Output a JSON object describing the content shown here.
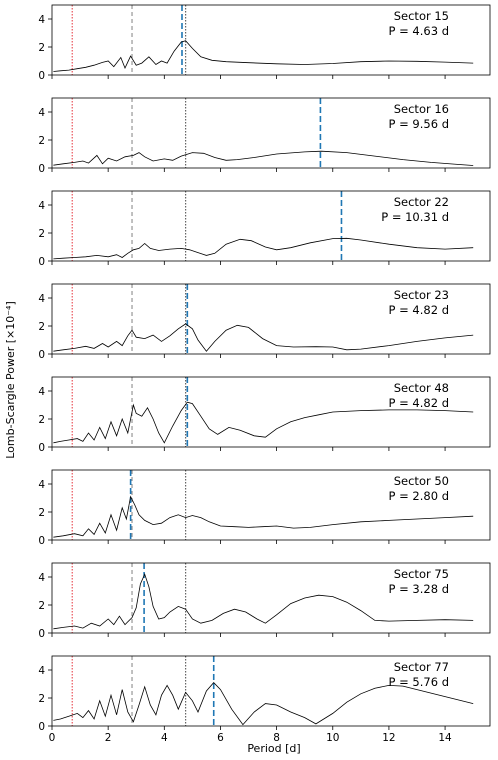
{
  "chart_data": {
    "type": "line",
    "ylabel": "Lomb-Scargle Power [×10⁻⁴]",
    "xlabel": "Period [d]",
    "xlim": [
      0,
      15.6
    ],
    "ylim": [
      0,
      5
    ],
    "x_ticks": [
      "0",
      "2",
      "4",
      "6",
      "8",
      "10",
      "12",
      "14"
    ],
    "x_tick_values": [
      0,
      2,
      4,
      6,
      8,
      10,
      12,
      14
    ],
    "y_ticks": [
      "0",
      "2",
      "4"
    ],
    "y_tick_values": [
      0,
      2,
      4
    ],
    "reference_lines": [
      {
        "kind": "red-dotted",
        "x": 0.72,
        "color": "#e8434b"
      },
      {
        "kind": "gray-dashed",
        "x": 2.85,
        "color": "#8c8c8c"
      },
      {
        "kind": "gray-dotted",
        "x": 4.76,
        "color": "#555555"
      }
    ],
    "best_period_color": "#1f77b4",
    "line_color": "#000000",
    "panels": [
      {
        "sector": "Sector 15",
        "period": "P = 4.63 d",
        "period_value": 4.63,
        "points": [
          [
            0.05,
            0.25
          ],
          [
            0.3,
            0.3
          ],
          [
            0.6,
            0.35
          ],
          [
            0.9,
            0.45
          ],
          [
            1.2,
            0.55
          ],
          [
            1.5,
            0.7
          ],
          [
            1.8,
            0.9
          ],
          [
            2.0,
            1.0
          ],
          [
            2.2,
            0.6
          ],
          [
            2.45,
            1.25
          ],
          [
            2.6,
            0.5
          ],
          [
            2.8,
            1.35
          ],
          [
            3.0,
            0.7
          ],
          [
            3.2,
            0.85
          ],
          [
            3.45,
            1.3
          ],
          [
            3.7,
            0.75
          ],
          [
            3.9,
            1.0
          ],
          [
            4.1,
            0.85
          ],
          [
            4.35,
            1.7
          ],
          [
            4.6,
            2.35
          ],
          [
            4.76,
            2.45
          ],
          [
            5.0,
            1.9
          ],
          [
            5.3,
            1.3
          ],
          [
            5.7,
            1.05
          ],
          [
            6.2,
            0.95
          ],
          [
            7.0,
            0.88
          ],
          [
            8.0,
            0.8
          ],
          [
            9.0,
            0.75
          ],
          [
            10.0,
            0.82
          ],
          [
            11.0,
            0.95
          ],
          [
            12.0,
            1.0
          ],
          [
            13.0,
            0.98
          ],
          [
            14.0,
            0.92
          ],
          [
            15.0,
            0.85
          ]
        ]
      },
      {
        "sector": "Sector 16",
        "period": "P = 9.56 d",
        "period_value": 9.56,
        "points": [
          [
            0.05,
            0.2
          ],
          [
            0.4,
            0.3
          ],
          [
            0.8,
            0.4
          ],
          [
            1.1,
            0.5
          ],
          [
            1.3,
            0.35
          ],
          [
            1.6,
            0.9
          ],
          [
            1.8,
            0.3
          ],
          [
            2.0,
            0.7
          ],
          [
            2.3,
            0.5
          ],
          [
            2.6,
            0.8
          ],
          [
            2.9,
            0.9
          ],
          [
            3.1,
            1.1
          ],
          [
            3.3,
            0.8
          ],
          [
            3.6,
            0.5
          ],
          [
            4.0,
            0.65
          ],
          [
            4.3,
            0.55
          ],
          [
            4.6,
            0.85
          ],
          [
            5.0,
            1.1
          ],
          [
            5.4,
            1.05
          ],
          [
            5.8,
            0.75
          ],
          [
            6.2,
            0.55
          ],
          [
            6.6,
            0.6
          ],
          [
            7.2,
            0.75
          ],
          [
            8.0,
            1.0
          ],
          [
            9.0,
            1.15
          ],
          [
            9.6,
            1.2
          ],
          [
            10.5,
            1.1
          ],
          [
            11.5,
            0.85
          ],
          [
            12.5,
            0.6
          ],
          [
            13.5,
            0.4
          ],
          [
            14.5,
            0.25
          ],
          [
            15.0,
            0.18
          ]
        ]
      },
      {
        "sector": "Sector 22",
        "period": "P = 10.31 d",
        "period_value": 10.31,
        "points": [
          [
            0.05,
            0.15
          ],
          [
            0.4,
            0.2
          ],
          [
            0.8,
            0.25
          ],
          [
            1.2,
            0.3
          ],
          [
            1.6,
            0.4
          ],
          [
            2.0,
            0.3
          ],
          [
            2.3,
            0.45
          ],
          [
            2.5,
            0.25
          ],
          [
            2.7,
            0.55
          ],
          [
            2.9,
            0.8
          ],
          [
            3.1,
            0.9
          ],
          [
            3.3,
            1.25
          ],
          [
            3.5,
            0.9
          ],
          [
            3.8,
            0.75
          ],
          [
            4.2,
            0.85
          ],
          [
            4.6,
            0.9
          ],
          [
            4.9,
            0.8
          ],
          [
            5.2,
            0.6
          ],
          [
            5.5,
            0.4
          ],
          [
            5.8,
            0.55
          ],
          [
            6.2,
            1.2
          ],
          [
            6.7,
            1.55
          ],
          [
            7.1,
            1.45
          ],
          [
            7.6,
            1.0
          ],
          [
            8.0,
            0.8
          ],
          [
            8.5,
            0.95
          ],
          [
            9.2,
            1.3
          ],
          [
            10.0,
            1.6
          ],
          [
            10.5,
            1.62
          ],
          [
            11.0,
            1.5
          ],
          [
            12.0,
            1.2
          ],
          [
            13.0,
            0.95
          ],
          [
            14.0,
            0.85
          ],
          [
            15.0,
            0.95
          ]
        ]
      },
      {
        "sector": "Sector 23",
        "period": "P = 4.82 d",
        "period_value": 4.82,
        "points": [
          [
            0.05,
            0.2
          ],
          [
            0.4,
            0.3
          ],
          [
            0.8,
            0.4
          ],
          [
            1.2,
            0.55
          ],
          [
            1.5,
            0.4
          ],
          [
            1.8,
            0.75
          ],
          [
            2.0,
            0.5
          ],
          [
            2.3,
            0.9
          ],
          [
            2.5,
            0.6
          ],
          [
            2.7,
            1.3
          ],
          [
            2.85,
            1.7
          ],
          [
            3.0,
            1.2
          ],
          [
            3.3,
            1.1
          ],
          [
            3.6,
            1.35
          ],
          [
            3.9,
            0.9
          ],
          [
            4.2,
            1.3
          ],
          [
            4.5,
            1.8
          ],
          [
            4.76,
            2.15
          ],
          [
            5.0,
            1.8
          ],
          [
            5.2,
            1.0
          ],
          [
            5.5,
            0.2
          ],
          [
            5.8,
            0.9
          ],
          [
            6.2,
            1.7
          ],
          [
            6.6,
            2.05
          ],
          [
            7.0,
            1.9
          ],
          [
            7.5,
            1.1
          ],
          [
            8.0,
            0.6
          ],
          [
            8.6,
            0.5
          ],
          [
            9.4,
            0.52
          ],
          [
            10.0,
            0.5
          ],
          [
            10.5,
            0.3
          ],
          [
            11.0,
            0.35
          ],
          [
            12.0,
            0.6
          ],
          [
            13.0,
            0.9
          ],
          [
            14.0,
            1.15
          ],
          [
            15.0,
            1.35
          ]
        ]
      },
      {
        "sector": "Sector 48",
        "period": "P = 4.82 d",
        "period_value": 4.82,
        "points": [
          [
            0.05,
            0.3
          ],
          [
            0.3,
            0.4
          ],
          [
            0.6,
            0.5
          ],
          [
            0.9,
            0.6
          ],
          [
            1.1,
            0.4
          ],
          [
            1.3,
            1.0
          ],
          [
            1.5,
            0.5
          ],
          [
            1.7,
            1.4
          ],
          [
            1.9,
            0.6
          ],
          [
            2.1,
            1.8
          ],
          [
            2.3,
            0.8
          ],
          [
            2.5,
            2.0
          ],
          [
            2.7,
            1.0
          ],
          [
            2.9,
            3.0
          ],
          [
            3.0,
            2.4
          ],
          [
            3.2,
            2.2
          ],
          [
            3.4,
            2.8
          ],
          [
            3.6,
            2.0
          ],
          [
            3.8,
            1.0
          ],
          [
            4.0,
            0.3
          ],
          [
            4.3,
            1.5
          ],
          [
            4.6,
            2.6
          ],
          [
            4.82,
            3.2
          ],
          [
            5.0,
            3.1
          ],
          [
            5.3,
            2.2
          ],
          [
            5.6,
            1.3
          ],
          [
            5.9,
            0.9
          ],
          [
            6.3,
            1.4
          ],
          [
            6.7,
            1.2
          ],
          [
            7.2,
            0.8
          ],
          [
            7.6,
            0.7
          ],
          [
            8.0,
            1.3
          ],
          [
            8.5,
            1.8
          ],
          [
            9.0,
            2.1
          ],
          [
            9.5,
            2.3
          ],
          [
            10.0,
            2.5
          ],
          [
            11.0,
            2.6
          ],
          [
            12.0,
            2.65
          ],
          [
            13.0,
            2.65
          ],
          [
            14.0,
            2.6
          ],
          [
            15.0,
            2.5
          ]
        ]
      },
      {
        "sector": "Sector 50",
        "period": "P = 2.80 d",
        "period_value": 2.8,
        "points": [
          [
            0.05,
            0.2
          ],
          [
            0.4,
            0.3
          ],
          [
            0.8,
            0.45
          ],
          [
            1.1,
            0.3
          ],
          [
            1.3,
            0.8
          ],
          [
            1.5,
            0.4
          ],
          [
            1.7,
            1.2
          ],
          [
            1.9,
            0.5
          ],
          [
            2.1,
            1.8
          ],
          [
            2.3,
            0.7
          ],
          [
            2.5,
            2.3
          ],
          [
            2.65,
            1.5
          ],
          [
            2.8,
            3.1
          ],
          [
            2.95,
            2.5
          ],
          [
            3.1,
            1.8
          ],
          [
            3.3,
            1.4
          ],
          [
            3.6,
            1.1
          ],
          [
            3.9,
            1.2
          ],
          [
            4.2,
            1.6
          ],
          [
            4.5,
            1.8
          ],
          [
            4.76,
            1.6
          ],
          [
            5.0,
            1.75
          ],
          [
            5.3,
            1.6
          ],
          [
            5.6,
            1.3
          ],
          [
            6.0,
            1.0
          ],
          [
            6.5,
            0.95
          ],
          [
            7.0,
            0.9
          ],
          [
            7.5,
            0.95
          ],
          [
            8.0,
            1.0
          ],
          [
            8.6,
            0.85
          ],
          [
            9.2,
            0.9
          ],
          [
            10.0,
            1.1
          ],
          [
            11.0,
            1.3
          ],
          [
            12.0,
            1.4
          ],
          [
            13.0,
            1.5
          ],
          [
            14.0,
            1.6
          ],
          [
            15.0,
            1.7
          ]
        ]
      },
      {
        "sector": "Sector 75",
        "period": "P = 3.28 d",
        "period_value": 3.28,
        "points": [
          [
            0.05,
            0.3
          ],
          [
            0.4,
            0.4
          ],
          [
            0.8,
            0.5
          ],
          [
            1.1,
            0.35
          ],
          [
            1.4,
            0.7
          ],
          [
            1.7,
            0.5
          ],
          [
            2.0,
            1.0
          ],
          [
            2.2,
            0.6
          ],
          [
            2.4,
            1.2
          ],
          [
            2.6,
            0.6
          ],
          [
            2.85,
            1.1
          ],
          [
            3.0,
            1.8
          ],
          [
            3.15,
            3.5
          ],
          [
            3.3,
            4.2
          ],
          [
            3.45,
            3.3
          ],
          [
            3.6,
            1.9
          ],
          [
            3.8,
            1.0
          ],
          [
            4.0,
            1.1
          ],
          [
            4.2,
            1.5
          ],
          [
            4.5,
            1.9
          ],
          [
            4.76,
            1.7
          ],
          [
            5.0,
            1.0
          ],
          [
            5.3,
            0.7
          ],
          [
            5.7,
            0.9
          ],
          [
            6.1,
            1.4
          ],
          [
            6.5,
            1.7
          ],
          [
            6.9,
            1.5
          ],
          [
            7.3,
            1.0
          ],
          [
            7.6,
            0.7
          ],
          [
            8.0,
            1.3
          ],
          [
            8.5,
            2.1
          ],
          [
            9.0,
            2.5
          ],
          [
            9.5,
            2.7
          ],
          [
            10.0,
            2.6
          ],
          [
            10.5,
            2.2
          ],
          [
            11.0,
            1.6
          ],
          [
            11.5,
            0.9
          ],
          [
            12.0,
            0.85
          ],
          [
            13.0,
            0.9
          ],
          [
            14.0,
            0.95
          ],
          [
            15.0,
            0.9
          ]
        ]
      },
      {
        "sector": "Sector 77",
        "period": "P = 5.76 d",
        "period_value": 5.76,
        "points": [
          [
            0.05,
            0.4
          ],
          [
            0.3,
            0.5
          ],
          [
            0.6,
            0.7
          ],
          [
            0.9,
            0.9
          ],
          [
            1.1,
            0.6
          ],
          [
            1.3,
            1.1
          ],
          [
            1.5,
            0.5
          ],
          [
            1.7,
            1.8
          ],
          [
            1.9,
            0.7
          ],
          [
            2.1,
            2.2
          ],
          [
            2.3,
            0.8
          ],
          [
            2.5,
            2.6
          ],
          [
            2.7,
            1.0
          ],
          [
            2.9,
            0.3
          ],
          [
            3.1,
            1.5
          ],
          [
            3.3,
            2.8
          ],
          [
            3.5,
            1.5
          ],
          [
            3.7,
            0.8
          ],
          [
            3.9,
            2.2
          ],
          [
            4.1,
            2.9
          ],
          [
            4.3,
            2.2
          ],
          [
            4.5,
            1.2
          ],
          [
            4.76,
            2.4
          ],
          [
            5.0,
            1.8
          ],
          [
            5.2,
            1.0
          ],
          [
            5.5,
            2.5
          ],
          [
            5.76,
            3.1
          ],
          [
            6.0,
            2.6
          ],
          [
            6.4,
            1.2
          ],
          [
            6.8,
            0.1
          ],
          [
            7.2,
            1.0
          ],
          [
            7.6,
            1.6
          ],
          [
            8.0,
            1.5
          ],
          [
            8.5,
            1.0
          ],
          [
            9.0,
            0.6
          ],
          [
            9.4,
            0.15
          ],
          [
            10.0,
            0.9
          ],
          [
            10.5,
            1.7
          ],
          [
            11.0,
            2.3
          ],
          [
            11.5,
            2.7
          ],
          [
            12.0,
            2.9
          ],
          [
            12.5,
            2.85
          ],
          [
            13.0,
            2.6
          ],
          [
            14.0,
            2.1
          ],
          [
            15.0,
            1.6
          ]
        ]
      }
    ]
  }
}
